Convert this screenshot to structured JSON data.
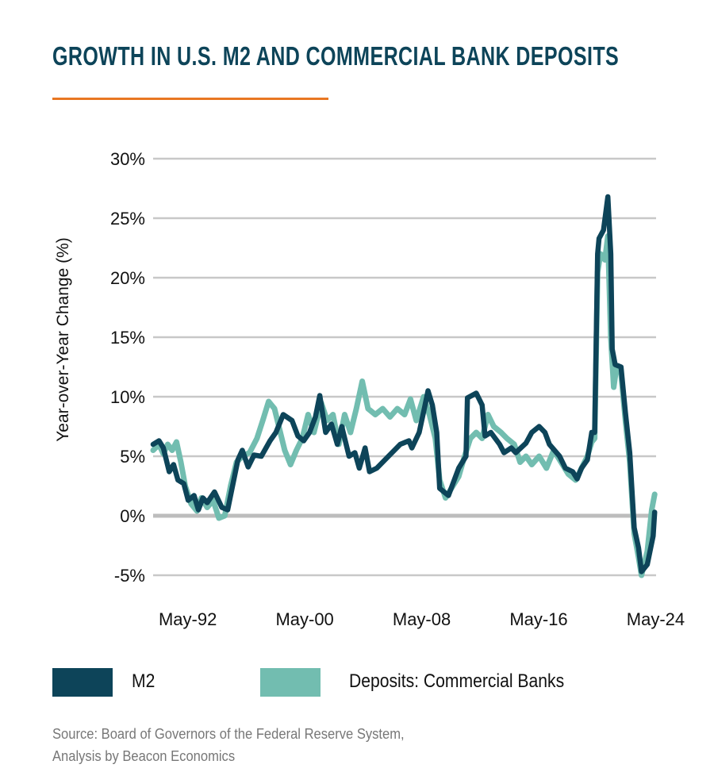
{
  "title": "GROWTH IN U.S. M2 AND COMMERCIAL BANK DEPOSITS",
  "colors": {
    "accent_rule": "#e87722",
    "m2": "#0d4459",
    "deposits": "#72bdb0",
    "grid": "#c8c8c8"
  },
  "source_line1": "Source: Board of Governors of the Federal Reserve System,",
  "source_line2": "Analysis by Beacon Economics",
  "chart_data": {
    "type": "line",
    "title": "GROWTH IN U.S. M2 AND COMMERCIAL BANK DEPOSITS",
    "xlabel": "",
    "ylabel": "Year-over-Year Change (%)",
    "xlim": [
      1990.0,
      2024.4
    ],
    "ylim": [
      -5,
      30
    ],
    "yticks": [
      -5,
      0,
      5,
      10,
      15,
      20,
      25,
      30
    ],
    "ytick_labels": [
      "-5%",
      "0%",
      "5%",
      "10%",
      "15%",
      "20%",
      "25%",
      "30%"
    ],
    "xticks": [
      1992.37,
      2000.37,
      2008.37,
      2016.37,
      2024.37
    ],
    "xtick_labels": [
      "May-92",
      "May-00",
      "May-08",
      "May-16",
      "May-24"
    ],
    "grid": true,
    "legend_placement": "bottom",
    "series": [
      {
        "name": "M2",
        "color": "#0d4459",
        "points": [
          [
            1990.0,
            6.0
          ],
          [
            1990.4,
            6.3
          ],
          [
            1990.7,
            5.7
          ],
          [
            1990.9,
            4.7
          ],
          [
            1991.1,
            3.7
          ],
          [
            1991.4,
            4.3
          ],
          [
            1991.7,
            3.0
          ],
          [
            1992.1,
            2.7
          ],
          [
            1992.4,
            1.3
          ],
          [
            1992.8,
            1.7
          ],
          [
            1993.1,
            0.5
          ],
          [
            1993.4,
            1.5
          ],
          [
            1993.7,
            1.1
          ],
          [
            1994.2,
            2.0
          ],
          [
            1994.7,
            0.7
          ],
          [
            1995.1,
            0.5
          ],
          [
            1995.4,
            2.3
          ],
          [
            1995.8,
            4.7
          ],
          [
            1996.1,
            5.5
          ],
          [
            1996.5,
            4.1
          ],
          [
            1996.9,
            5.1
          ],
          [
            1997.4,
            5.0
          ],
          [
            1998.0,
            6.3
          ],
          [
            1998.4,
            7.0
          ],
          [
            1998.9,
            8.5
          ],
          [
            1999.5,
            8.0
          ],
          [
            1999.9,
            6.7
          ],
          [
            2000.3,
            6.3
          ],
          [
            2000.7,
            7.0
          ],
          [
            2001.1,
            8.3
          ],
          [
            2001.4,
            10.1
          ],
          [
            2001.8,
            7.0
          ],
          [
            2002.2,
            7.7
          ],
          [
            2002.6,
            6.0
          ],
          [
            2002.9,
            7.5
          ],
          [
            2003.4,
            5.0
          ],
          [
            2003.8,
            5.3
          ],
          [
            2004.1,
            4.0
          ],
          [
            2004.5,
            5.7
          ],
          [
            2004.8,
            3.7
          ],
          [
            2005.3,
            4.0
          ],
          [
            2006.1,
            5.0
          ],
          [
            2006.9,
            6.0
          ],
          [
            2007.5,
            6.3
          ],
          [
            2007.7,
            5.7
          ],
          [
            2008.2,
            7.0
          ],
          [
            2008.6,
            9.3
          ],
          [
            2008.8,
            10.5
          ],
          [
            2009.1,
            9.3
          ],
          [
            2009.4,
            7.0
          ],
          [
            2009.6,
            2.3
          ],
          [
            2010.2,
            1.7
          ],
          [
            2010.9,
            4.0
          ],
          [
            2011.4,
            5.0
          ],
          [
            2011.5,
            9.9
          ],
          [
            2012.1,
            10.3
          ],
          [
            2012.5,
            9.3
          ],
          [
            2012.7,
            6.7
          ],
          [
            2013.1,
            7.0
          ],
          [
            2013.7,
            6.0
          ],
          [
            2014.0,
            5.3
          ],
          [
            2014.5,
            5.7
          ],
          [
            2014.8,
            5.3
          ],
          [
            2015.5,
            6.1
          ],
          [
            2015.9,
            7.0
          ],
          [
            2016.4,
            7.5
          ],
          [
            2016.8,
            7.0
          ],
          [
            2017.1,
            6.0
          ],
          [
            2017.8,
            5.0
          ],
          [
            2018.2,
            4.0
          ],
          [
            2018.7,
            3.7
          ],
          [
            2019.0,
            3.1
          ],
          [
            2019.3,
            4.0
          ],
          [
            2019.7,
            4.7
          ],
          [
            2020.0,
            7.0
          ],
          [
            2020.2,
            7.0
          ],
          [
            2020.4,
            22.0
          ],
          [
            2020.5,
            23.3
          ],
          [
            2020.8,
            24.0
          ],
          [
            2021.1,
            26.8
          ],
          [
            2021.3,
            22.0
          ],
          [
            2021.4,
            14.0
          ],
          [
            2021.6,
            12.7
          ],
          [
            2022.0,
            12.5
          ],
          [
            2022.3,
            8.7
          ],
          [
            2022.6,
            5.3
          ],
          [
            2022.9,
            -1.0
          ],
          [
            2023.2,
            -2.7
          ],
          [
            2023.4,
            -4.7
          ],
          [
            2023.8,
            -4.1
          ],
          [
            2024.2,
            -1.7
          ],
          [
            2024.3,
            0.3
          ]
        ]
      },
      {
        "name": "Deposits: Commercial Banks",
        "color": "#72bdb0",
        "points": [
          [
            1990.0,
            5.5
          ],
          [
            1990.4,
            6.0
          ],
          [
            1990.7,
            5.2
          ],
          [
            1991.0,
            6.0
          ],
          [
            1991.3,
            5.5
          ],
          [
            1991.6,
            6.2
          ],
          [
            1991.9,
            4.5
          ],
          [
            1992.2,
            2.5
          ],
          [
            1992.6,
            1.0
          ],
          [
            1993.0,
            0.4
          ],
          [
            1993.3,
            1.5
          ],
          [
            1993.7,
            0.7
          ],
          [
            1994.1,
            1.3
          ],
          [
            1994.5,
            -0.2
          ],
          [
            1994.9,
            0.0
          ],
          [
            1995.3,
            2.5
          ],
          [
            1995.7,
            4.5
          ],
          [
            1996.1,
            5.0
          ],
          [
            1996.6,
            5.3
          ],
          [
            1997.1,
            6.5
          ],
          [
            1997.5,
            8.0
          ],
          [
            1997.9,
            9.6
          ],
          [
            1998.3,
            9.0
          ],
          [
            1998.6,
            7.5
          ],
          [
            1999.0,
            5.5
          ],
          [
            1999.4,
            4.3
          ],
          [
            1999.8,
            5.5
          ],
          [
            2000.2,
            6.5
          ],
          [
            2000.6,
            8.5
          ],
          [
            2001.0,
            7.0
          ],
          [
            2001.5,
            9.5
          ],
          [
            2001.9,
            8.0
          ],
          [
            2002.3,
            8.5
          ],
          [
            2002.7,
            6.0
          ],
          [
            2003.1,
            8.5
          ],
          [
            2003.5,
            7.0
          ],
          [
            2003.9,
            9.0
          ],
          [
            2004.3,
            11.3
          ],
          [
            2004.7,
            9.0
          ],
          [
            2005.2,
            8.5
          ],
          [
            2005.7,
            9.0
          ],
          [
            2006.2,
            8.3
          ],
          [
            2006.7,
            9.0
          ],
          [
            2007.2,
            8.5
          ],
          [
            2007.6,
            9.8
          ],
          [
            2008.0,
            8.0
          ],
          [
            2008.5,
            10.0
          ],
          [
            2008.9,
            8.5
          ],
          [
            2009.3,
            6.5
          ],
          [
            2009.6,
            3.0
          ],
          [
            2010.0,
            1.5
          ],
          [
            2010.5,
            2.5
          ],
          [
            2010.9,
            3.3
          ],
          [
            2011.3,
            5.0
          ],
          [
            2011.7,
            6.5
          ],
          [
            2012.1,
            7.0
          ],
          [
            2012.5,
            6.5
          ],
          [
            2012.9,
            8.5
          ],
          [
            2013.3,
            7.5
          ],
          [
            2013.8,
            7.0
          ],
          [
            2014.2,
            6.5
          ],
          [
            2014.7,
            6.0
          ],
          [
            2015.1,
            4.5
          ],
          [
            2015.5,
            5.0
          ],
          [
            2015.9,
            4.3
          ],
          [
            2016.4,
            5.0
          ],
          [
            2016.9,
            4.0
          ],
          [
            2017.4,
            5.5
          ],
          [
            2017.9,
            4.5
          ],
          [
            2018.4,
            3.5
          ],
          [
            2018.9,
            3.0
          ],
          [
            2019.3,
            4.0
          ],
          [
            2019.7,
            5.0
          ],
          [
            2020.0,
            6.2
          ],
          [
            2020.2,
            6.5
          ],
          [
            2020.4,
            20.5
          ],
          [
            2020.6,
            22.0
          ],
          [
            2020.9,
            21.5
          ],
          [
            2021.1,
            23.5
          ],
          [
            2021.3,
            15.0
          ],
          [
            2021.5,
            10.8
          ],
          [
            2021.7,
            12.5
          ],
          [
            2022.0,
            12.0
          ],
          [
            2022.3,
            8.0
          ],
          [
            2022.6,
            4.5
          ],
          [
            2022.9,
            -1.5
          ],
          [
            2023.2,
            -3.5
          ],
          [
            2023.4,
            -5.0
          ],
          [
            2023.8,
            -3.0
          ],
          [
            2024.1,
            0.5
          ],
          [
            2024.3,
            1.8
          ]
        ]
      }
    ]
  }
}
